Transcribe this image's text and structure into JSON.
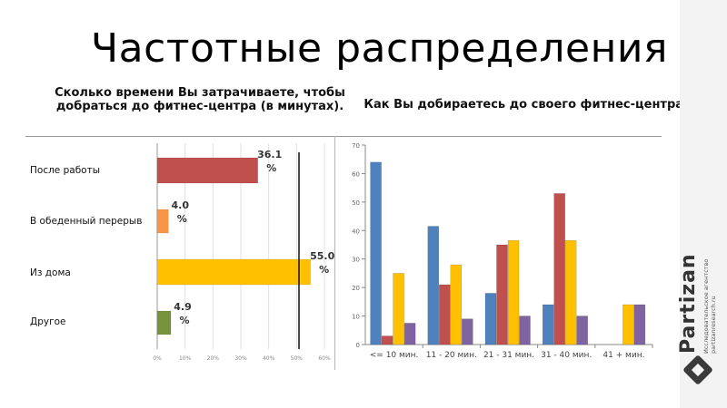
{
  "page_title": "Частотные распределения",
  "colors": {
    "bar_red": "#c0504d",
    "bar_orange": "#f79646",
    "bar_yellow": "#ffc000",
    "bar_green": "#77933c",
    "series_blue": "#4f81bd",
    "series_red": "#c0504d",
    "series_yellow": "#ffc000",
    "series_purple": "#8064a2"
  },
  "brand": {
    "name": "Partizan",
    "tagline_1": "Исследовательское агентство",
    "tagline_2": "partizanresearch.ru"
  },
  "chart_data": [
    {
      "type": "bar",
      "orientation": "horizontal",
      "title": "Сколько времени Вы затрачиваете, чтобы добраться до фитнес-центра (в минутах).",
      "categories": [
        "После работы",
        "В обеденный перерыв",
        "Из дома",
        "Другое"
      ],
      "values": [
        36.1,
        4.0,
        55.0,
        4.9
      ],
      "value_labels": [
        "36.1 %",
        "4.0 %",
        "55.0 %",
        "4.9 %"
      ],
      "xlim": [
        0,
        60
      ],
      "x_ticks": [
        "0%",
        "10%",
        "20%",
        "30%",
        "40%",
        "50%",
        "60%"
      ],
      "grid": true
    },
    {
      "type": "bar",
      "title": "Как Вы добираетесь до своего фитнес-центра?",
      "categories": [
        "<= 10 мин.",
        "11 - 20 мин.",
        "21 - 31 мин.",
        "31 - 40 мин.",
        "41 + мин."
      ],
      "series": [
        {
          "values": [
            64,
            41.5,
            18,
            14,
            0
          ]
        },
        {
          "values": [
            3,
            21,
            35,
            53,
            0
          ]
        },
        {
          "values": [
            25,
            28,
            36.5,
            36.5,
            14
          ]
        },
        {
          "values": [
            7.5,
            9,
            10,
            10,
            14
          ]
        }
      ],
      "ylim": [
        0,
        70
      ],
      "y_ticks": [
        0,
        10,
        20,
        30,
        40,
        50,
        60,
        70
      ],
      "grid": false
    }
  ]
}
